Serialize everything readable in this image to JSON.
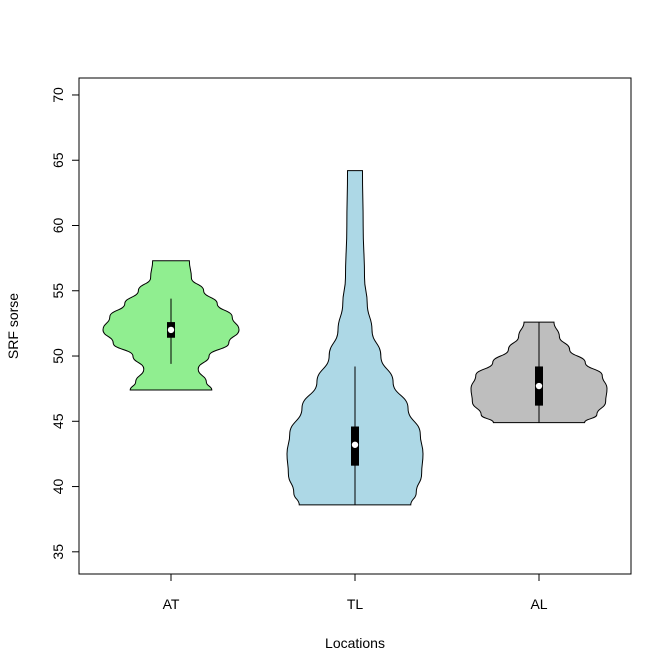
{
  "chart_data": {
    "type": "violin",
    "title": "",
    "xlabel": "Locations",
    "ylabel": "SRF sorse",
    "ylim": [
      35,
      70
    ],
    "yticks": [
      35,
      40,
      45,
      50,
      55,
      60,
      65,
      70
    ],
    "grid": false,
    "categories": [
      "AT",
      "TL",
      "AL"
    ],
    "series": [
      {
        "category": "AT",
        "color": "#90ee90",
        "min": 47.4,
        "q1": 51.4,
        "median": 52.0,
        "q3": 52.6,
        "max": 57.3,
        "whisker_low": 49.4,
        "whisker_high": 54.4,
        "density": [
          [
            47.4,
            0.6
          ],
          [
            48.0,
            0.52
          ],
          [
            49.0,
            0.4
          ],
          [
            50.0,
            0.56
          ],
          [
            51.0,
            0.85
          ],
          [
            52.0,
            1.0
          ],
          [
            53.0,
            0.9
          ],
          [
            54.0,
            0.68
          ],
          [
            55.0,
            0.48
          ],
          [
            56.0,
            0.3
          ],
          [
            57.3,
            0.27
          ]
        ]
      },
      {
        "category": "TL",
        "color": "#add8e6",
        "min": 38.6,
        "q1": 41.6,
        "median": 43.2,
        "q3": 44.6,
        "max": 64.2,
        "whisker_low": 38.6,
        "whisker_high": 49.2,
        "density": [
          [
            38.6,
            0.82
          ],
          [
            39.5,
            0.9
          ],
          [
            41.0,
            0.98
          ],
          [
            42.5,
            1.0
          ],
          [
            44.0,
            0.96
          ],
          [
            46.0,
            0.78
          ],
          [
            48.0,
            0.56
          ],
          [
            50.0,
            0.38
          ],
          [
            52.0,
            0.25
          ],
          [
            54.0,
            0.18
          ],
          [
            56.0,
            0.14
          ],
          [
            60.0,
            0.12
          ],
          [
            64.2,
            0.11
          ]
        ]
      },
      {
        "category": "AL",
        "color": "#bebebe",
        "min": 44.9,
        "q1": 46.2,
        "median": 47.7,
        "q3": 49.2,
        "max": 52.6,
        "whisker_low": 44.9,
        "whisker_high": 52.6,
        "density": [
          [
            44.9,
            0.67
          ],
          [
            45.5,
            0.85
          ],
          [
            46.5,
            0.98
          ],
          [
            47.5,
            1.0
          ],
          [
            48.5,
            0.93
          ],
          [
            49.5,
            0.68
          ],
          [
            50.5,
            0.45
          ],
          [
            51.5,
            0.3
          ],
          [
            52.6,
            0.22
          ]
        ]
      }
    ]
  }
}
